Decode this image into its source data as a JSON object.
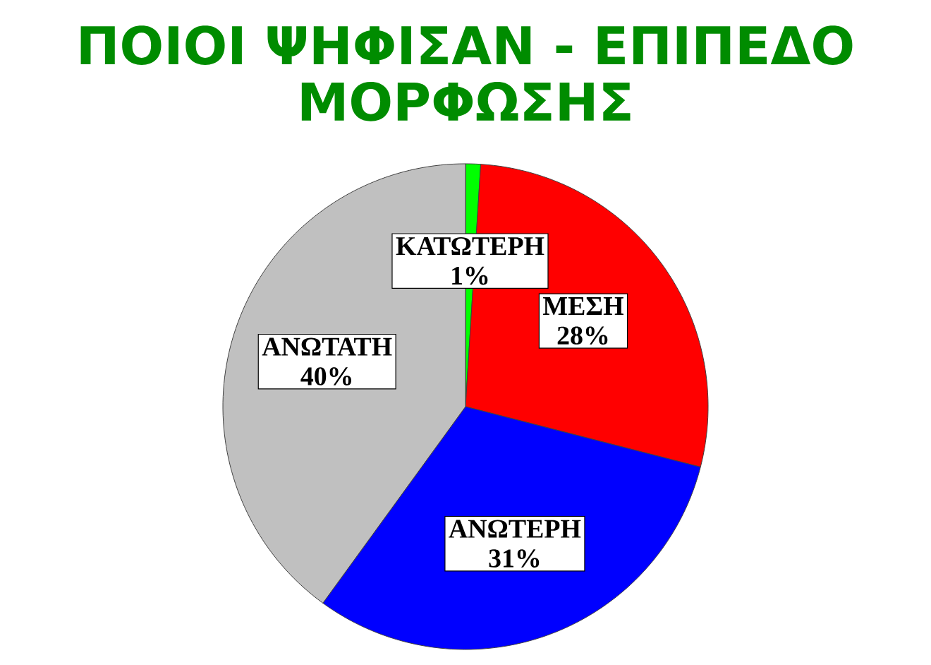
{
  "chart_data": {
    "type": "pie",
    "title": "ΠΟΙΟΙ ΨΗΦΙΣΑΝ - ΕΠΙΠΕΔΟ ΜΟΡΦΩΣΗΣ",
    "categories": [
      "ΚΑΤΩΤΕΡΗ",
      "ΜΕΣΗ",
      "ΑΝΩΤΕΡΗ",
      "ΑΝΩΤΑΤΗ"
    ],
    "values": [
      1,
      28,
      31,
      40
    ],
    "colors": [
      "#00ff00",
      "#ff0000",
      "#0000ff",
      "#c0c0c0"
    ],
    "value_labels": [
      "1%",
      "28%",
      "31%",
      "40%"
    ]
  }
}
